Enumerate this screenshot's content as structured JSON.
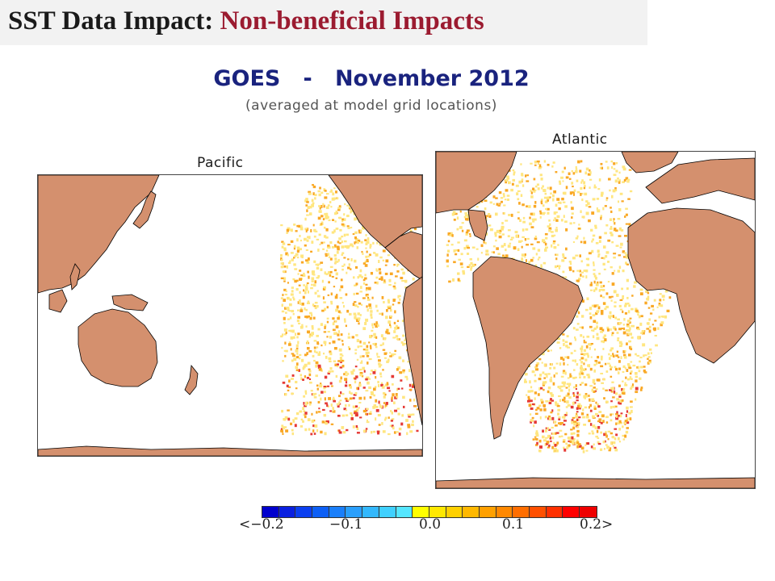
{
  "slide": {
    "title_prefix": "SST Data Impact: ",
    "title_highlight": "Non-beneficial Impacts",
    "subtitle": "GOES   -   November 2012",
    "note": "(averaged at model grid locations)"
  },
  "panels": {
    "pacific": {
      "label": "Pacific"
    },
    "atlantic": {
      "label": "Atlantic"
    }
  },
  "colors": {
    "land": "#d4906e",
    "ocean": "#ffffff",
    "coast": "#000000",
    "impact_light": "#ffe680",
    "impact_mid": "#f9a825",
    "impact_strong": "#e53935"
  },
  "colorbar": {
    "colors": [
      "#0000cd",
      "#0a20e0",
      "#0b3ff0",
      "#0d5ff5",
      "#1a7ffa",
      "#2a9ffc",
      "#33b8fd",
      "#40d0fe",
      "#55e6ff",
      "#ffff00",
      "#ffe800",
      "#ffd000",
      "#ffb800",
      "#ffa000",
      "#ff8800",
      "#ff6e00",
      "#ff5000",
      "#ff3000",
      "#ff0000",
      "#ee0000"
    ],
    "ticks": [
      "<−0.2",
      "−0.1",
      "0.0",
      "0.1",
      "0.2>"
    ]
  }
}
